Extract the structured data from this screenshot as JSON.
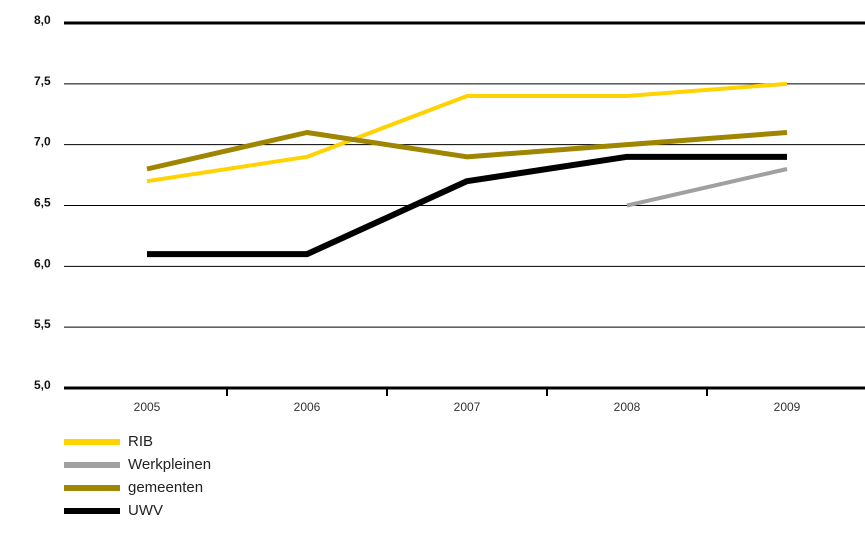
{
  "chart_data": {
    "type": "line",
    "title": "",
    "xlabel": "",
    "ylabel": "",
    "x": [
      "2005",
      "2006",
      "2007",
      "2008",
      "2009"
    ],
    "ylim": [
      5.0,
      8.0
    ],
    "yticks": [
      "5,0",
      "5,5",
      "6,0",
      "6,5",
      "7,0",
      "7,5",
      "8,0"
    ],
    "grid": true,
    "legend_position": "bottom-left",
    "series": [
      {
        "name": "RIB",
        "color": "#FFD200",
        "values": [
          6.7,
          6.9,
          7.4,
          7.4,
          7.5
        ]
      },
      {
        "name": "Werkpleinen",
        "color": "#A0A0A0",
        "values": [
          null,
          null,
          null,
          6.5,
          6.8
        ]
      },
      {
        "name": "gemeenten",
        "color": "#9E8600",
        "values": [
          6.8,
          7.1,
          6.9,
          7.0,
          7.1
        ]
      },
      {
        "name": "UWV",
        "color": "#000000",
        "values": [
          6.1,
          6.1,
          6.7,
          6.9,
          6.9
        ]
      }
    ]
  }
}
